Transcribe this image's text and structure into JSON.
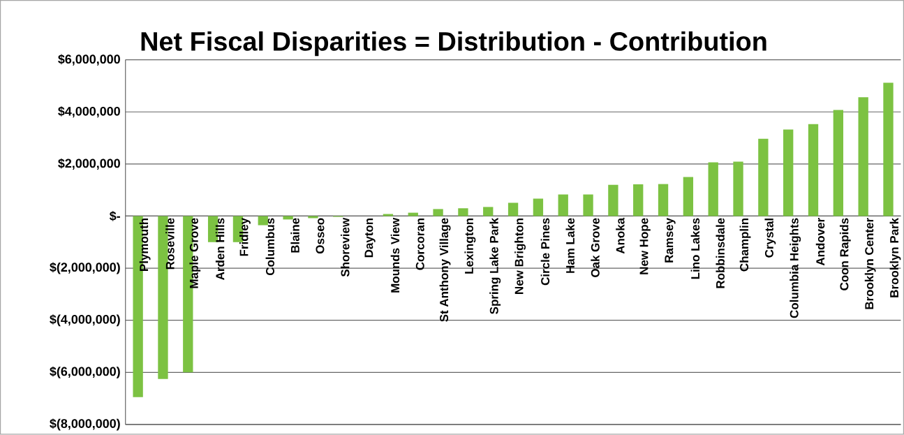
{
  "chart_data": {
    "type": "bar",
    "title": "Net Fiscal Disparities = Distribution - Contribution",
    "categories": [
      "Plymouth",
      "Roseville",
      "Maple Grove",
      "Arden Hills",
      "Fridley",
      "Columbus",
      "Blaine",
      "Osseo",
      "Shoreview",
      "Dayton",
      "Mounds View",
      "Corcoran",
      "St Anthony Village",
      "Lexington",
      "Spring Lake Park",
      "New Brighton",
      "Circle Pines",
      "Ham Lake",
      "Oak Grove",
      "Anoka",
      "New Hope",
      "Ramsey",
      "Lino Lakes",
      "Robbinsdale",
      "Champlin",
      "Crystal",
      "Columbia Heights",
      "Andover",
      "Coon Rapids",
      "Brooklyn Center",
      "Brooklyn Park"
    ],
    "values": [
      -6950000,
      -6250000,
      -6000000,
      -1000000,
      -1000000,
      -350000,
      -130000,
      -80000,
      -30000,
      0,
      80000,
      130000,
      270000,
      300000,
      350000,
      510000,
      670000,
      830000,
      830000,
      1200000,
      1220000,
      1230000,
      1500000,
      2060000,
      2090000,
      2970000,
      3320000,
      3530000,
      4070000,
      4560000,
      5120000
    ],
    "color": "#7cc242",
    "ylim": [
      -8000000,
      6000000
    ],
    "yticks": [
      {
        "value": -8000000,
        "label": "$(8,000,000)"
      },
      {
        "value": -6000000,
        "label": "$(6,000,000)"
      },
      {
        "value": -4000000,
        "label": "$(4,000,000)"
      },
      {
        "value": -2000000,
        "label": "$(2,000,000)"
      },
      {
        "value": 0,
        "label": "$-"
      },
      {
        "value": 2000000,
        "label": "$2,000,000"
      },
      {
        "value": 4000000,
        "label": "$4,000,000"
      },
      {
        "value": 6000000,
        "label": "$6,000,000"
      }
    ],
    "grid": "y"
  }
}
